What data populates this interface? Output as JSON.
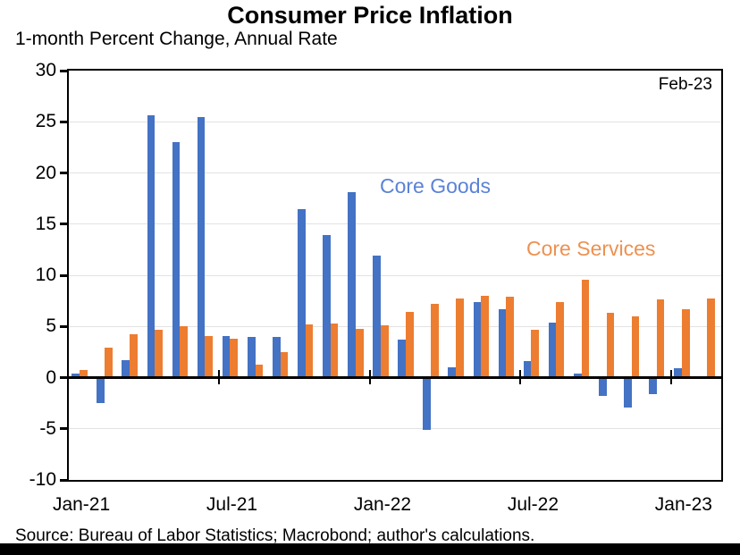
{
  "chart_data": {
    "type": "bar",
    "title": "Consumer Price Inflation",
    "subtitle": "1-month Percent Change, Annual Rate",
    "annotation": "Feb-23",
    "categories": [
      "Jan-21",
      "Feb-21",
      "Mar-21",
      "Apr-21",
      "May-21",
      "Jun-21",
      "Jul-21",
      "Aug-21",
      "Sep-21",
      "Oct-21",
      "Nov-21",
      "Dec-21",
      "Jan-22",
      "Feb-22",
      "Mar-22",
      "Apr-22",
      "May-22",
      "Jun-22",
      "Jul-22",
      "Aug-22",
      "Sep-22",
      "Oct-22",
      "Nov-22",
      "Dec-22",
      "Jan-23",
      "Feb-23"
    ],
    "series": [
      {
        "name": "Core Goods",
        "color": "#4472C4",
        "label_color": "#5B82D6",
        "values": [
          0.4,
          -2.5,
          1.7,
          25.6,
          23.0,
          25.5,
          4.1,
          4.0,
          4.0,
          16.5,
          13.9,
          18.1,
          11.9,
          3.7,
          -5.1,
          1.0,
          7.4,
          6.7,
          1.6,
          5.4,
          0.4,
          -1.8,
          -2.9,
          -1.6,
          0.9,
          0.0
        ]
      },
      {
        "name": "Core Services",
        "color": "#ED7D31",
        "label_color": "#ED9150",
        "values": [
          0.7,
          2.9,
          4.2,
          4.7,
          5.0,
          4.1,
          3.8,
          1.3,
          2.5,
          5.2,
          5.3,
          4.8,
          5.1,
          6.4,
          7.2,
          7.7,
          8.0,
          7.9,
          4.7,
          7.4,
          9.6,
          6.3,
          6.0,
          7.6,
          6.7,
          7.7
        ]
      }
    ],
    "ylim": [
      -10,
      30
    ],
    "y_ticks": [
      30,
      25,
      20,
      15,
      10,
      5,
      0,
      -5,
      -10
    ],
    "x_tick_labels": [
      "Jan-21",
      "Jul-21",
      "Jan-22",
      "Jul-22",
      "Jan-23"
    ],
    "x_tick_category_indices": [
      0,
      6,
      12,
      18,
      24
    ],
    "grid": "horizontal-light-gray",
    "legend_position": "inline-text-labels",
    "source": "Source: Bureau of Labor Statistics; Macrobond; author's calculations."
  }
}
